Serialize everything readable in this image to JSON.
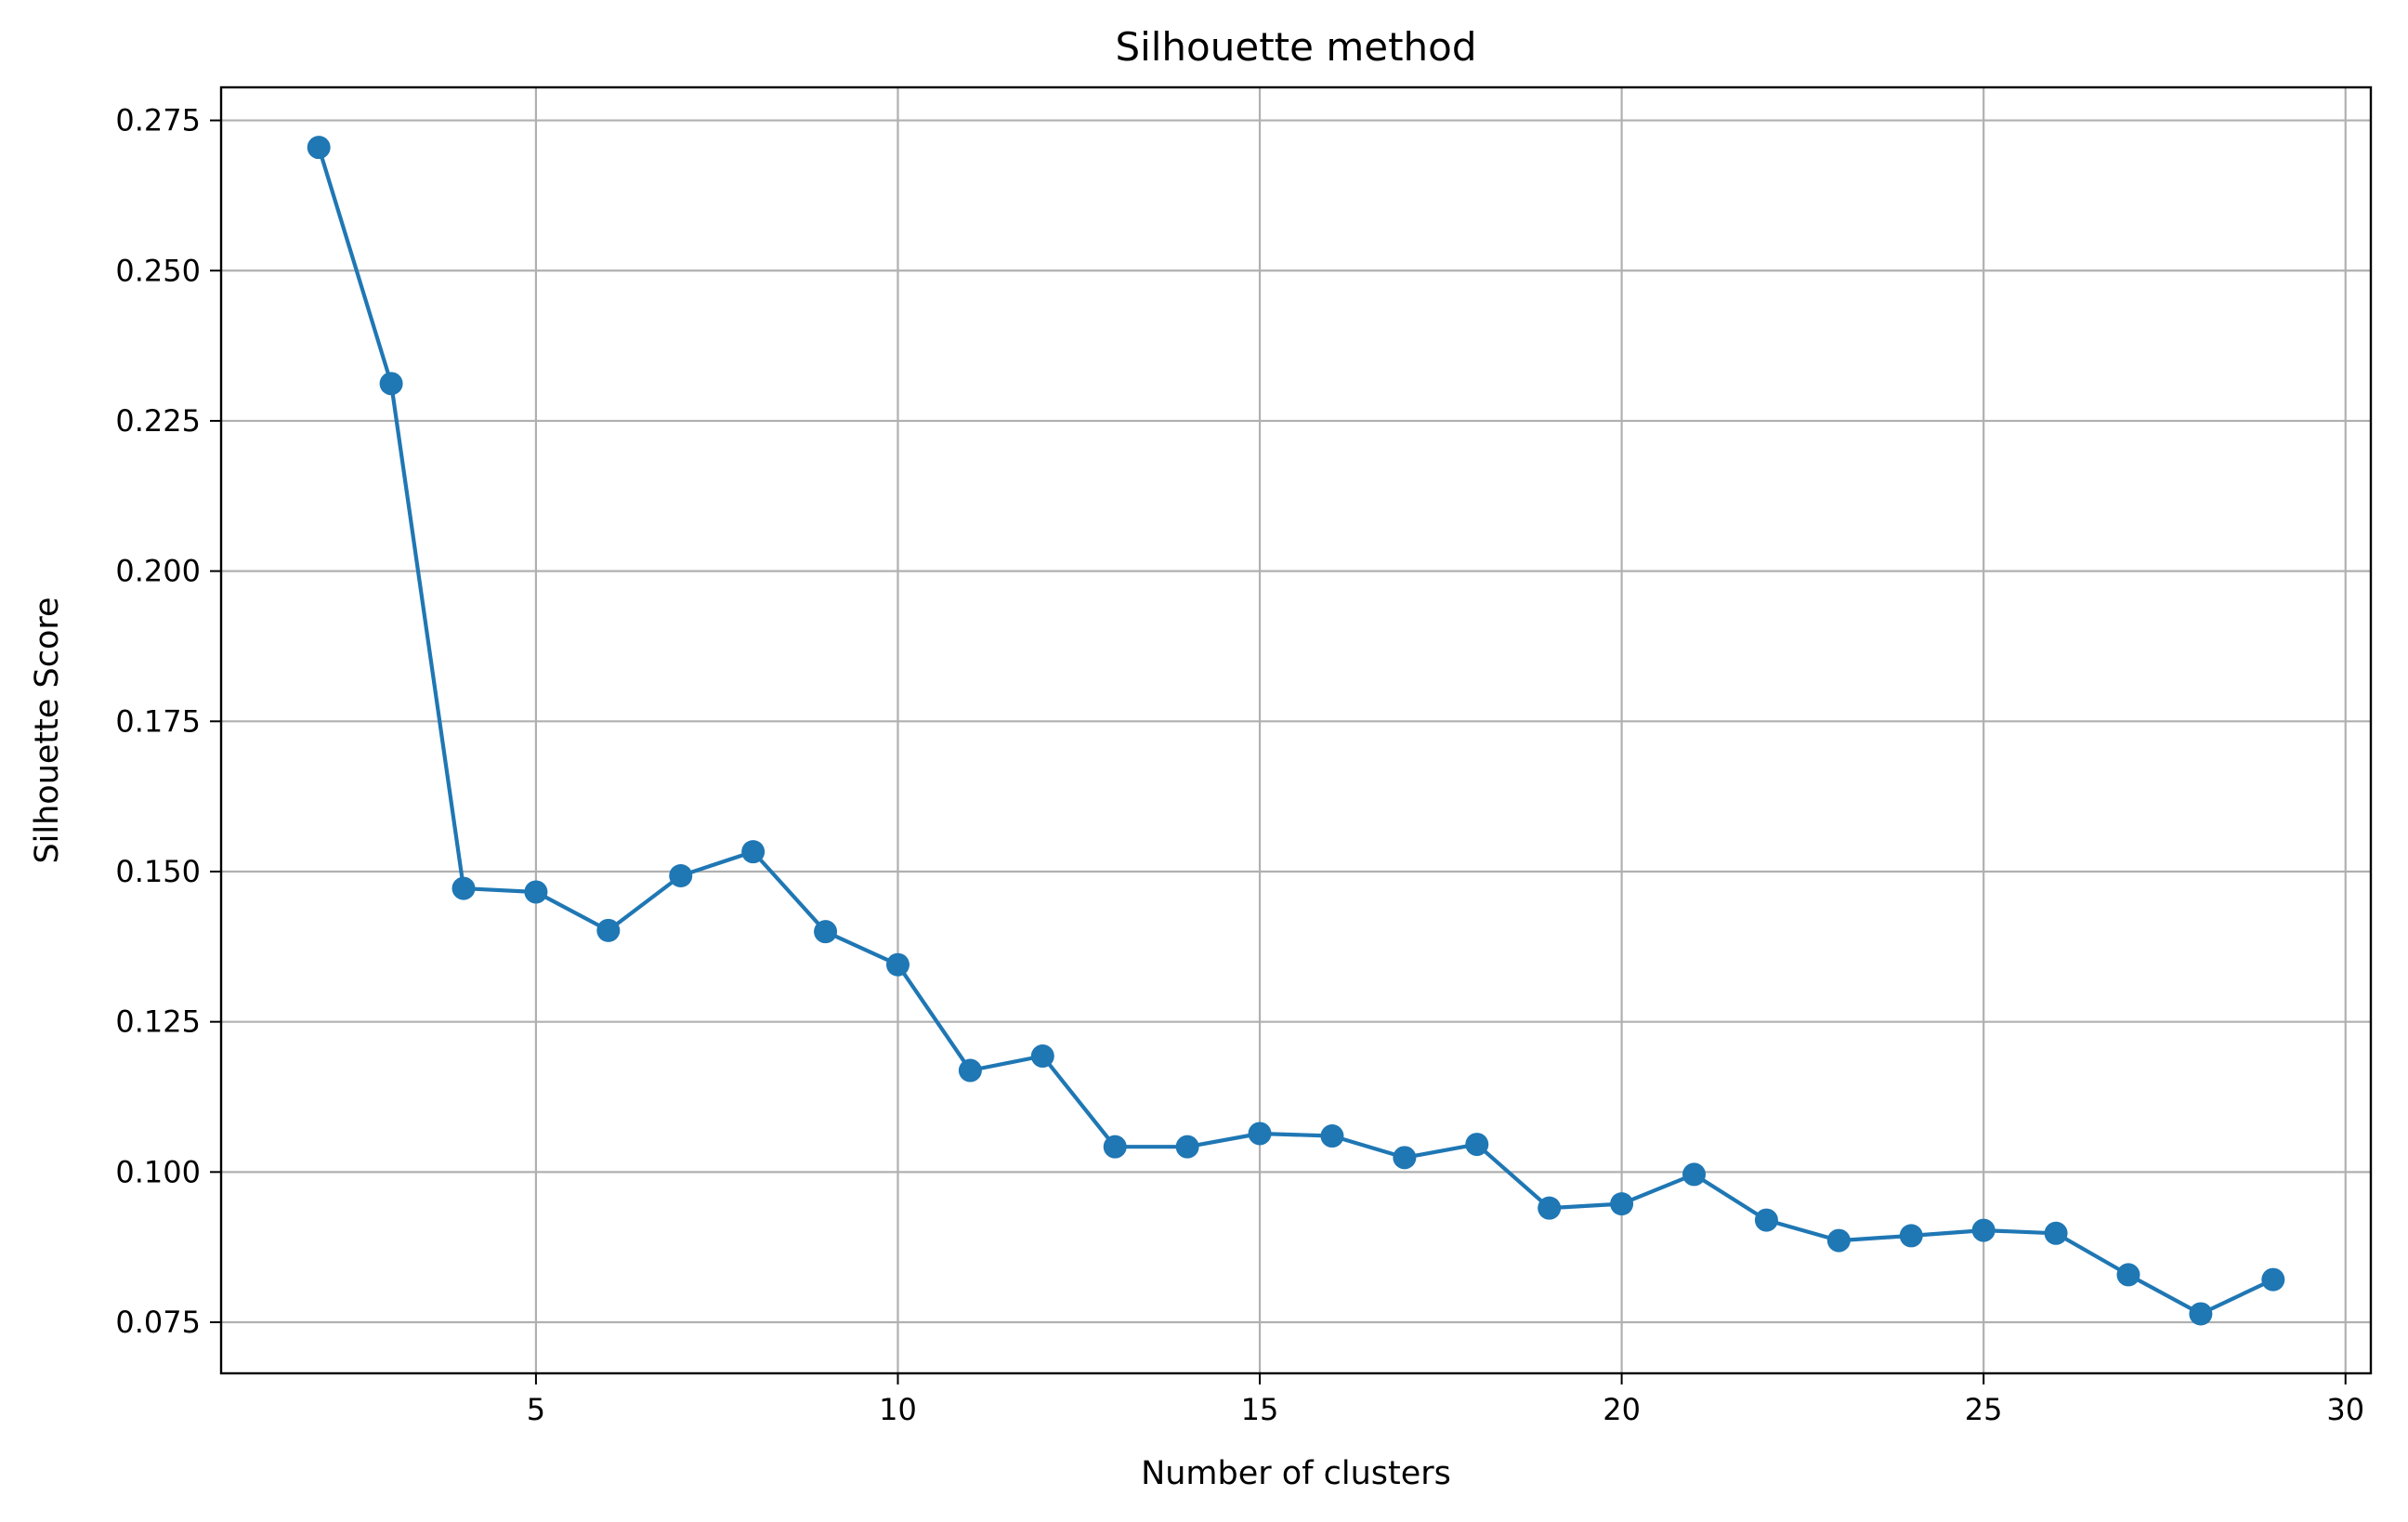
{
  "chart_data": {
    "type": "line",
    "title": "Silhouette method",
    "xlabel": "Number of clusters",
    "ylabel": "Silhouette Score",
    "xlim": [
      0.65,
      30.35
    ],
    "ylim": [
      0.0665,
      0.2805
    ],
    "xticks": [
      5,
      10,
      15,
      20,
      25,
      30
    ],
    "yticks": [
      0.075,
      0.1,
      0.125,
      0.15,
      0.175,
      0.2,
      0.225,
      0.25,
      0.275
    ],
    "xtick_labels": [
      "5",
      "10",
      "15",
      "20",
      "25",
      "30"
    ],
    "ytick_labels": [
      "0.075",
      "0.100",
      "0.125",
      "0.150",
      "0.175",
      "0.200",
      "0.225",
      "0.250",
      "0.275"
    ],
    "grid": true,
    "marker": "circle",
    "color": "#1f77b4",
    "x": [
      2,
      3,
      4,
      5,
      6,
      7,
      8,
      9,
      10,
      11,
      12,
      13,
      14,
      15,
      16,
      17,
      18,
      19,
      20,
      21,
      22,
      23,
      24,
      25,
      26,
      27,
      28,
      29
    ],
    "y": [
      0.2705,
      0.2312,
      0.1472,
      0.1466,
      0.1402,
      0.1493,
      0.1533,
      0.14,
      0.1345,
      0.1169,
      0.1193,
      0.1042,
      0.1042,
      0.1064,
      0.106,
      0.1024,
      0.1046,
      0.094,
      0.0947,
      0.0996,
      0.092,
      0.0886,
      0.0894,
      0.0903,
      0.0898,
      0.0829,
      0.0764,
      0.0821
    ]
  }
}
